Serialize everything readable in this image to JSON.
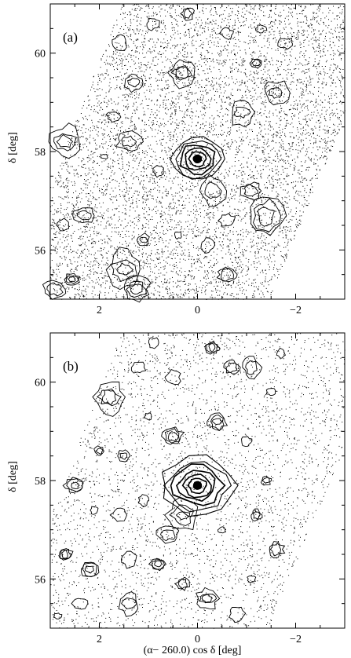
{
  "figure": {
    "xlabel": "(α− 260.0) cos δ [deg]"
  },
  "chart_data": [
    {
      "type": "scatter",
      "panel_label": "(a)",
      "xlabel": "",
      "ylabel": "δ [deg]",
      "xlim": [
        3,
        -3
      ],
      "ylim": [
        55,
        61
      ],
      "x_ticks": [
        2,
        0,
        -2
      ],
      "x_tick_labels": [
        "2",
        "0",
        "−2"
      ],
      "y_ticks": [
        56,
        58,
        60
      ],
      "y_tick_labels": [
        "56",
        "58",
        "60"
      ],
      "x_minor_step": 0.5,
      "y_minor_step": 0.5,
      "footprint": [
        [
          3.0,
          57.3
        ],
        [
          1.55,
          61.0
        ],
        [
          -3.0,
          61.0
        ],
        [
          -3.0,
          58.7
        ],
        [
          -1.45,
          55.0
        ],
        [
          3.0,
          55.0
        ]
      ],
      "density": "high",
      "main_overdensity": {
        "x": 0.0,
        "y": 57.85,
        "rx": [
          0.08,
          0.17,
          0.26,
          0.35,
          0.44,
          0.52
        ],
        "ry": [
          0.07,
          0.15,
          0.22,
          0.3,
          0.38,
          0.46
        ]
      },
      "knots": [
        [
          2.9,
          55.2
        ],
        [
          2.55,
          55.4
        ],
        [
          2.3,
          56.7
        ],
        [
          2.75,
          56.5
        ],
        [
          1.9,
          57.9
        ],
        [
          1.7,
          58.7
        ],
        [
          1.3,
          59.4
        ],
        [
          1.6,
          60.2
        ],
        [
          0.9,
          60.6
        ],
        [
          0.2,
          60.8
        ],
        [
          -0.6,
          60.4
        ],
        [
          -1.3,
          60.5
        ],
        [
          -1.8,
          60.2
        ],
        [
          -1.2,
          59.8
        ],
        [
          -0.9,
          58.8
        ],
        [
          -1.1,
          57.2
        ],
        [
          -0.6,
          56.6
        ],
        [
          -0.2,
          56.1
        ],
        [
          0.4,
          56.3
        ],
        [
          1.1,
          56.2
        ],
        [
          1.5,
          55.6
        ],
        [
          -0.6,
          55.5
        ],
        [
          -1.4,
          56.7
        ],
        [
          0.8,
          57.6
        ],
        [
          1.4,
          58.2
        ],
        [
          -1.6,
          59.2
        ],
        [
          0.3,
          59.6
        ],
        [
          2.7,
          58.2
        ],
        [
          1.25,
          55.2
        ],
        [
          -0.3,
          57.2
        ]
      ]
    },
    {
      "type": "scatter",
      "panel_label": "(b)",
      "xlabel": "(α− 260.0) cos δ [deg]",
      "ylabel": "δ [deg]",
      "xlim": [
        3,
        -3
      ],
      "ylim": [
        55,
        61
      ],
      "x_ticks": [
        2,
        0,
        -2
      ],
      "x_tick_labels": [
        "2",
        "0",
        "−2"
      ],
      "y_ticks": [
        56,
        58,
        60
      ],
      "y_tick_labels": [
        "56",
        "58",
        "60"
      ],
      "x_minor_step": 0.5,
      "y_minor_step": 0.5,
      "footprint": [
        [
          3.0,
          57.3
        ],
        [
          1.55,
          61.0
        ],
        [
          -3.0,
          61.0
        ],
        [
          -3.0,
          58.7
        ],
        [
          -1.45,
          55.0
        ],
        [
          3.0,
          55.0
        ]
      ],
      "density": "low",
      "main_overdensity": {
        "x": 0.0,
        "y": 57.9,
        "rx": [
          0.08,
          0.18,
          0.28,
          0.38,
          0.5,
          0.62,
          0.74
        ],
        "ry": [
          0.07,
          0.15,
          0.23,
          0.31,
          0.4,
          0.49,
          0.58
        ]
      },
      "knots": [
        [
          2.85,
          55.25
        ],
        [
          2.4,
          55.5
        ],
        [
          2.7,
          56.5
        ],
        [
          2.2,
          56.2
        ],
        [
          2.1,
          57.4
        ],
        [
          1.6,
          57.3
        ],
        [
          2.0,
          58.6
        ],
        [
          1.5,
          58.5
        ],
        [
          1.8,
          59.7
        ],
        [
          1.2,
          60.3
        ],
        [
          0.9,
          60.8
        ],
        [
          0.5,
          60.1
        ],
        [
          -0.3,
          60.7
        ],
        [
          -0.7,
          60.3
        ],
        [
          -1.1,
          60.3
        ],
        [
          -1.7,
          60.6
        ],
        [
          -1.5,
          59.8
        ],
        [
          -1.0,
          58.8
        ],
        [
          -1.4,
          58.0
        ],
        [
          -1.2,
          57.3
        ],
        [
          -1.6,
          56.6
        ],
        [
          -1.1,
          56.0
        ],
        [
          -0.8,
          55.3
        ],
        [
          -0.2,
          55.6
        ],
        [
          0.3,
          55.9
        ],
        [
          0.8,
          56.3
        ],
        [
          1.4,
          56.4
        ],
        [
          0.6,
          56.9
        ],
        [
          1.1,
          57.6
        ],
        [
          0.5,
          58.9
        ],
        [
          1.0,
          59.3
        ],
        [
          -0.4,
          59.2
        ],
        [
          0.3,
          57.3
        ],
        [
          -0.5,
          57.0
        ],
        [
          2.5,
          57.9
        ],
        [
          1.4,
          55.5
        ]
      ]
    }
  ]
}
